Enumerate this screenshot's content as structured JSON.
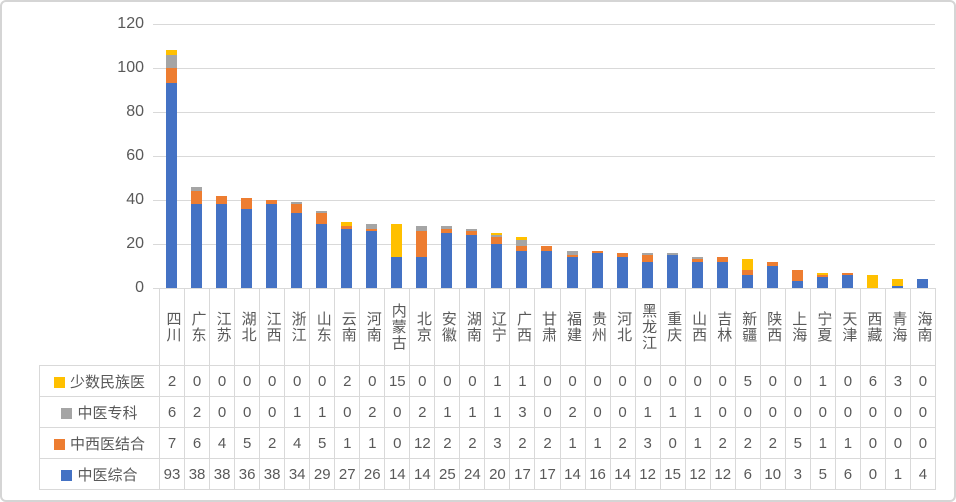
{
  "frame": {
    "background": "#FFFFFF",
    "border_color": "#D5D5D5"
  },
  "chart_data": {
    "type": "bar",
    "stacked": true,
    "title": "",
    "xlabel": "",
    "ylabel": "",
    "categories": [
      "四川",
      "广东",
      "江苏",
      "湖北",
      "江西",
      "浙江",
      "山东",
      "云南",
      "河南",
      "内蒙古",
      "北京",
      "安徽",
      "湖南",
      "辽宁",
      "广西",
      "甘肃",
      "福建",
      "贵州",
      "河北",
      "黑龙江",
      "重庆",
      "山西",
      "吉林",
      "新疆",
      "陕西",
      "上海",
      "宁夏",
      "天津",
      "西藏",
      "青海",
      "海南"
    ],
    "series": [
      {
        "name": "少数民族医",
        "color": "#FFC000",
        "values": [
          2,
          0,
          0,
          0,
          0,
          0,
          0,
          2,
          0,
          15,
          0,
          0,
          0,
          1,
          1,
          0,
          0,
          0,
          0,
          0,
          0,
          0,
          0,
          5,
          0,
          0,
          1,
          0,
          6,
          3,
          0
        ]
      },
      {
        "name": "中医专科",
        "color": "#A5A5A5",
        "values": [
          6,
          2,
          0,
          0,
          0,
          1,
          1,
          0,
          2,
          0,
          2,
          1,
          1,
          1,
          3,
          0,
          2,
          0,
          0,
          1,
          1,
          1,
          0,
          0,
          0,
          0,
          0,
          0,
          0,
          0,
          0
        ]
      },
      {
        "name": "中西医结合",
        "color": "#ED7D31",
        "values": [
          7,
          6,
          4,
          5,
          2,
          4,
          5,
          1,
          1,
          0,
          12,
          2,
          2,
          3,
          2,
          2,
          1,
          1,
          2,
          3,
          0,
          1,
          2,
          2,
          2,
          5,
          1,
          1,
          0,
          0,
          0
        ]
      },
      {
        "name": "中医综合",
        "color": "#4472C4",
        "values": [
          93,
          38,
          38,
          36,
          38,
          34,
          29,
          27,
          26,
          14,
          14,
          25,
          24,
          20,
          17,
          17,
          14,
          16,
          14,
          12,
          15,
          12,
          12,
          6,
          10,
          3,
          5,
          6,
          0,
          1,
          4
        ]
      }
    ],
    "stack_order_bottom_to_top": [
      "中医综合",
      "中西医结合",
      "中医专科",
      "少数民族医"
    ],
    "ylim": [
      0,
      120
    ],
    "yticks": [
      0,
      20,
      40,
      60,
      80,
      100,
      120
    ],
    "grid": true,
    "legend_position": "data-table-left-column",
    "axis_text_color": "#595959",
    "gridline_color": "#D9D9D9",
    "table_border_color": "#D9D9D9"
  }
}
